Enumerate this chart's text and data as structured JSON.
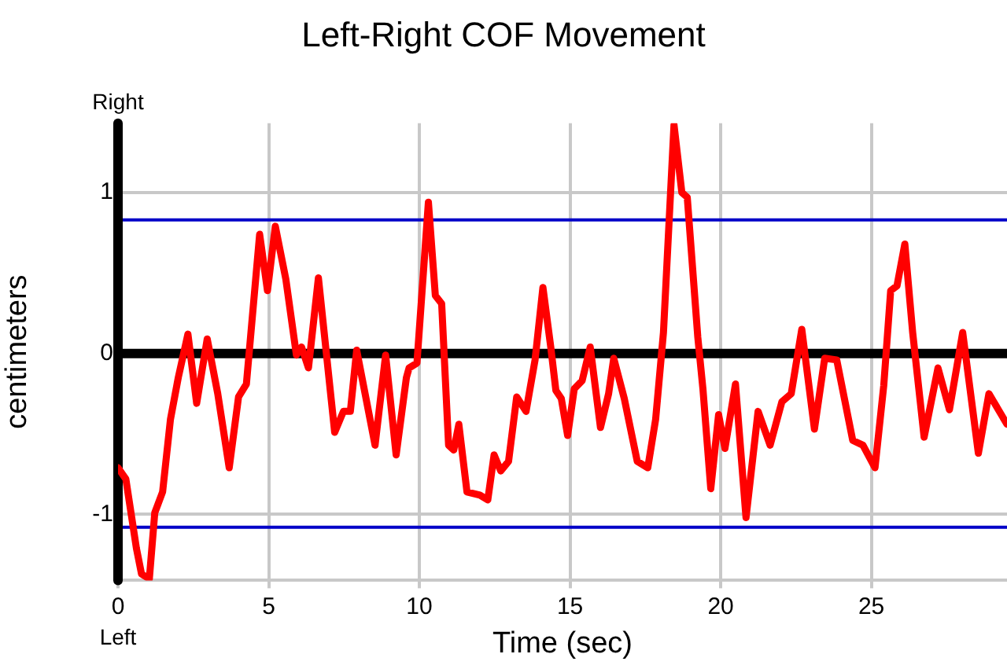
{
  "chart_data": {
    "type": "line",
    "title": "Left-Right COF Movement",
    "xlabel": "Time (sec)",
    "ylabel": "centimeters",
    "annotations": [
      "Right",
      "Left"
    ],
    "series": [
      {
        "color": "#ff0000",
        "x": [
          0,
          0.26,
          0.61,
          0.78,
          1.04,
          1.22,
          1.48,
          1.74,
          2.0,
          2.32,
          2.61,
          2.96,
          3.31,
          3.69,
          4.0,
          4.26,
          4.7,
          4.96,
          5.22,
          5.57,
          5.92,
          6.09,
          6.32,
          6.65,
          7.19,
          7.48,
          7.71,
          7.92,
          8.53,
          8.88,
          9.23,
          9.57,
          9.66,
          9.92,
          10.3,
          10.53,
          10.74,
          10.97,
          11.14,
          11.31,
          11.58,
          12.01,
          12.27,
          12.48,
          12.7,
          12.96,
          13.23,
          13.54,
          13.84,
          14.1,
          14.36,
          14.53,
          14.71,
          14.92,
          15.14,
          15.4,
          15.67,
          16.01,
          16.28,
          16.45,
          16.8,
          17.23,
          17.58,
          17.84,
          18.1,
          18.45,
          18.71,
          18.89,
          19.24,
          19.41,
          19.67,
          19.93,
          20.14,
          20.49,
          20.84,
          21.24,
          21.64,
          22.03,
          22.34,
          22.69,
          23.11,
          23.45,
          23.85,
          24.38,
          24.72,
          25.12,
          25.41,
          25.64,
          25.85,
          26.11,
          26.37,
          26.75,
          27.21,
          27.59,
          28.03,
          28.55,
          28.9,
          29.5
        ],
        "values": [
          -0.71,
          -0.78,
          -1.21,
          -1.37,
          -1.4,
          -0.99,
          -0.86,
          -0.41,
          -0.15,
          0.12,
          -0.31,
          0.09,
          -0.25,
          -0.71,
          -0.27,
          -0.19,
          0.74,
          0.39,
          0.79,
          0.46,
          -0.01,
          0.04,
          -0.09,
          0.47,
          -0.49,
          -0.36,
          -0.36,
          0.02,
          -0.57,
          -0.01,
          -0.63,
          -0.15,
          -0.09,
          -0.06,
          0.94,
          0.36,
          0.31,
          -0.57,
          -0.6,
          -0.44,
          -0.86,
          -0.88,
          -0.91,
          -0.63,
          -0.73,
          -0.67,
          -0.27,
          -0.36,
          -0.04,
          0.41,
          0.04,
          -0.23,
          -0.28,
          -0.51,
          -0.22,
          -0.17,
          0.04,
          -0.46,
          -0.25,
          -0.03,
          -0.28,
          -0.67,
          -0.71,
          -0.41,
          0.13,
          1.42,
          1.0,
          0.97,
          0.1,
          -0.22,
          -0.84,
          -0.38,
          -0.59,
          -0.19,
          -1.02,
          -0.36,
          -0.57,
          -0.3,
          -0.25,
          0.15,
          -0.47,
          -0.03,
          -0.04,
          -0.54,
          -0.57,
          -0.71,
          -0.2,
          0.39,
          0.42,
          0.68,
          0.13,
          -0.52,
          -0.09,
          -0.35,
          0.13,
          -0.62,
          -0.25,
          -0.44
        ]
      }
    ],
    "xlim": [
      0,
      29.5
    ],
    "xticks": [
      0,
      5,
      10,
      15,
      20,
      25
    ],
    "ylim": [
      -1.41,
      1.43
    ],
    "yticks": [
      -1,
      0,
      1
    ],
    "ref_lines": [
      {
        "axis": "y",
        "value": 0.83,
        "color": "#0000c8"
      },
      {
        "axis": "y",
        "value": -1.08,
        "color": "#0000c8"
      }
    ],
    "grid": true,
    "legend": false,
    "marker": "none",
    "line_style": "solid"
  }
}
